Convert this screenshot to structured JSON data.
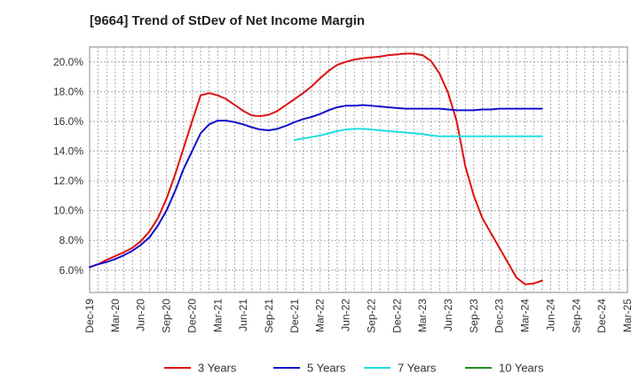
{
  "chart_data": {
    "type": "line",
    "title": "[9664]  Trend of StDev of Net Income Margin",
    "xlabel": "",
    "ylabel": "",
    "x_ticks": [
      "Dec-19",
      "Mar-20",
      "Jun-20",
      "Sep-20",
      "Dec-20",
      "Mar-21",
      "Jun-21",
      "Sep-21",
      "Dec-21",
      "Mar-22",
      "Jun-22",
      "Sep-22",
      "Dec-22",
      "Mar-23",
      "Jun-23",
      "Sep-23",
      "Dec-23",
      "Mar-24",
      "Jun-24",
      "Sep-24",
      "Dec-24",
      "Mar-25"
    ],
    "y_ticks": [
      "6.0%",
      "8.0%",
      "10.0%",
      "12.0%",
      "14.0%",
      "16.0%",
      "18.0%",
      "20.0%"
    ],
    "y_tick_values": [
      6,
      8,
      10,
      12,
      14,
      16,
      18,
      20
    ],
    "ylim": [
      4.5,
      21.0
    ],
    "grid": true,
    "legend_position": "bottom",
    "series": [
      {
        "name": "3 Years",
        "color": "#dd1111",
        "values": [
          [
            0,
            6.2
          ],
          [
            1,
            6.4
          ],
          [
            2,
            6.7
          ],
          [
            3,
            6.95
          ],
          [
            4,
            7.2
          ],
          [
            5,
            7.5
          ],
          [
            6,
            7.95
          ],
          [
            7,
            8.6
          ],
          [
            8,
            9.5
          ],
          [
            9,
            10.8
          ],
          [
            10,
            12.4
          ],
          [
            11,
            14.2
          ],
          [
            12,
            16.0
          ],
          [
            13,
            17.75
          ],
          [
            14,
            17.9
          ],
          [
            15,
            17.75
          ],
          [
            16,
            17.5
          ],
          [
            17,
            17.1
          ],
          [
            18,
            16.7
          ],
          [
            19,
            16.4
          ],
          [
            20,
            16.35
          ],
          [
            21,
            16.45
          ],
          [
            22,
            16.7
          ],
          [
            23,
            17.1
          ],
          [
            24,
            17.5
          ],
          [
            25,
            17.9
          ],
          [
            26,
            18.35
          ],
          [
            27,
            18.9
          ],
          [
            28,
            19.4
          ],
          [
            29,
            19.8
          ],
          [
            30,
            20.0
          ],
          [
            31,
            20.15
          ],
          [
            32,
            20.25
          ],
          [
            33,
            20.3
          ],
          [
            34,
            20.35
          ],
          [
            35,
            20.45
          ],
          [
            36,
            20.5
          ],
          [
            37,
            20.55
          ],
          [
            38,
            20.55
          ],
          [
            39,
            20.45
          ],
          [
            40,
            20.05
          ],
          [
            41,
            19.2
          ],
          [
            42,
            17.9
          ],
          [
            43,
            16.0
          ],
          [
            44,
            13.0
          ],
          [
            45,
            11.0
          ],
          [
            46,
            9.5
          ],
          [
            47,
            8.5
          ],
          [
            48,
            7.5
          ],
          [
            49,
            6.5
          ],
          [
            50,
            5.5
          ],
          [
            51,
            5.05
          ],
          [
            52,
            5.1
          ],
          [
            53,
            5.3
          ]
        ]
      },
      {
        "name": "5 Years",
        "color": "#1111cc",
        "values": [
          [
            0,
            6.2
          ],
          [
            1,
            6.4
          ],
          [
            2,
            6.55
          ],
          [
            3,
            6.75
          ],
          [
            4,
            7.0
          ],
          [
            5,
            7.3
          ],
          [
            6,
            7.7
          ],
          [
            7,
            8.2
          ],
          [
            8,
            9.0
          ],
          [
            9,
            10.0
          ],
          [
            10,
            11.3
          ],
          [
            11,
            12.8
          ],
          [
            12,
            14.0
          ],
          [
            13,
            15.2
          ],
          [
            14,
            15.8
          ],
          [
            15,
            16.05
          ],
          [
            16,
            16.05
          ],
          [
            17,
            15.95
          ],
          [
            18,
            15.8
          ],
          [
            19,
            15.6
          ],
          [
            20,
            15.45
          ],
          [
            21,
            15.4
          ],
          [
            22,
            15.5
          ],
          [
            23,
            15.7
          ],
          [
            24,
            15.95
          ],
          [
            25,
            16.15
          ],
          [
            26,
            16.3
          ],
          [
            27,
            16.5
          ],
          [
            28,
            16.75
          ],
          [
            29,
            16.95
          ],
          [
            30,
            17.05
          ],
          [
            31,
            17.05
          ],
          [
            32,
            17.1
          ],
          [
            33,
            17.05
          ],
          [
            34,
            17.0
          ],
          [
            35,
            16.95
          ],
          [
            36,
            16.9
          ],
          [
            37,
            16.85
          ],
          [
            38,
            16.85
          ],
          [
            39,
            16.85
          ],
          [
            40,
            16.85
          ],
          [
            41,
            16.85
          ],
          [
            42,
            16.8
          ],
          [
            43,
            16.75
          ],
          [
            44,
            16.75
          ],
          [
            45,
            16.75
          ],
          [
            46,
            16.8
          ],
          [
            47,
            16.8
          ],
          [
            48,
            16.85
          ],
          [
            49,
            16.85
          ],
          [
            50,
            16.85
          ],
          [
            51,
            16.85
          ],
          [
            52,
            16.85
          ],
          [
            53,
            16.85
          ]
        ]
      },
      {
        "name": "7 Years",
        "color": "#22dddd",
        "values": [
          [
            24,
            14.75
          ],
          [
            25,
            14.85
          ],
          [
            26,
            14.95
          ],
          [
            27,
            15.05
          ],
          [
            28,
            15.2
          ],
          [
            29,
            15.35
          ],
          [
            30,
            15.45
          ],
          [
            31,
            15.5
          ],
          [
            32,
            15.5
          ],
          [
            33,
            15.45
          ],
          [
            34,
            15.4
          ],
          [
            35,
            15.35
          ],
          [
            36,
            15.3
          ],
          [
            37,
            15.25
          ],
          [
            38,
            15.2
          ],
          [
            39,
            15.15
          ],
          [
            40,
            15.05
          ],
          [
            41,
            15.0
          ],
          [
            42,
            15.0
          ],
          [
            43,
            15.0
          ],
          [
            44,
            15.0
          ],
          [
            45,
            15.0
          ],
          [
            46,
            15.0
          ],
          [
            47,
            15.0
          ],
          [
            48,
            15.0
          ],
          [
            49,
            15.0
          ],
          [
            50,
            15.0
          ],
          [
            51,
            15.0
          ],
          [
            52,
            15.0
          ],
          [
            53,
            15.0
          ]
        ]
      },
      {
        "name": "10 Years",
        "color": "#228822",
        "values": []
      }
    ]
  }
}
